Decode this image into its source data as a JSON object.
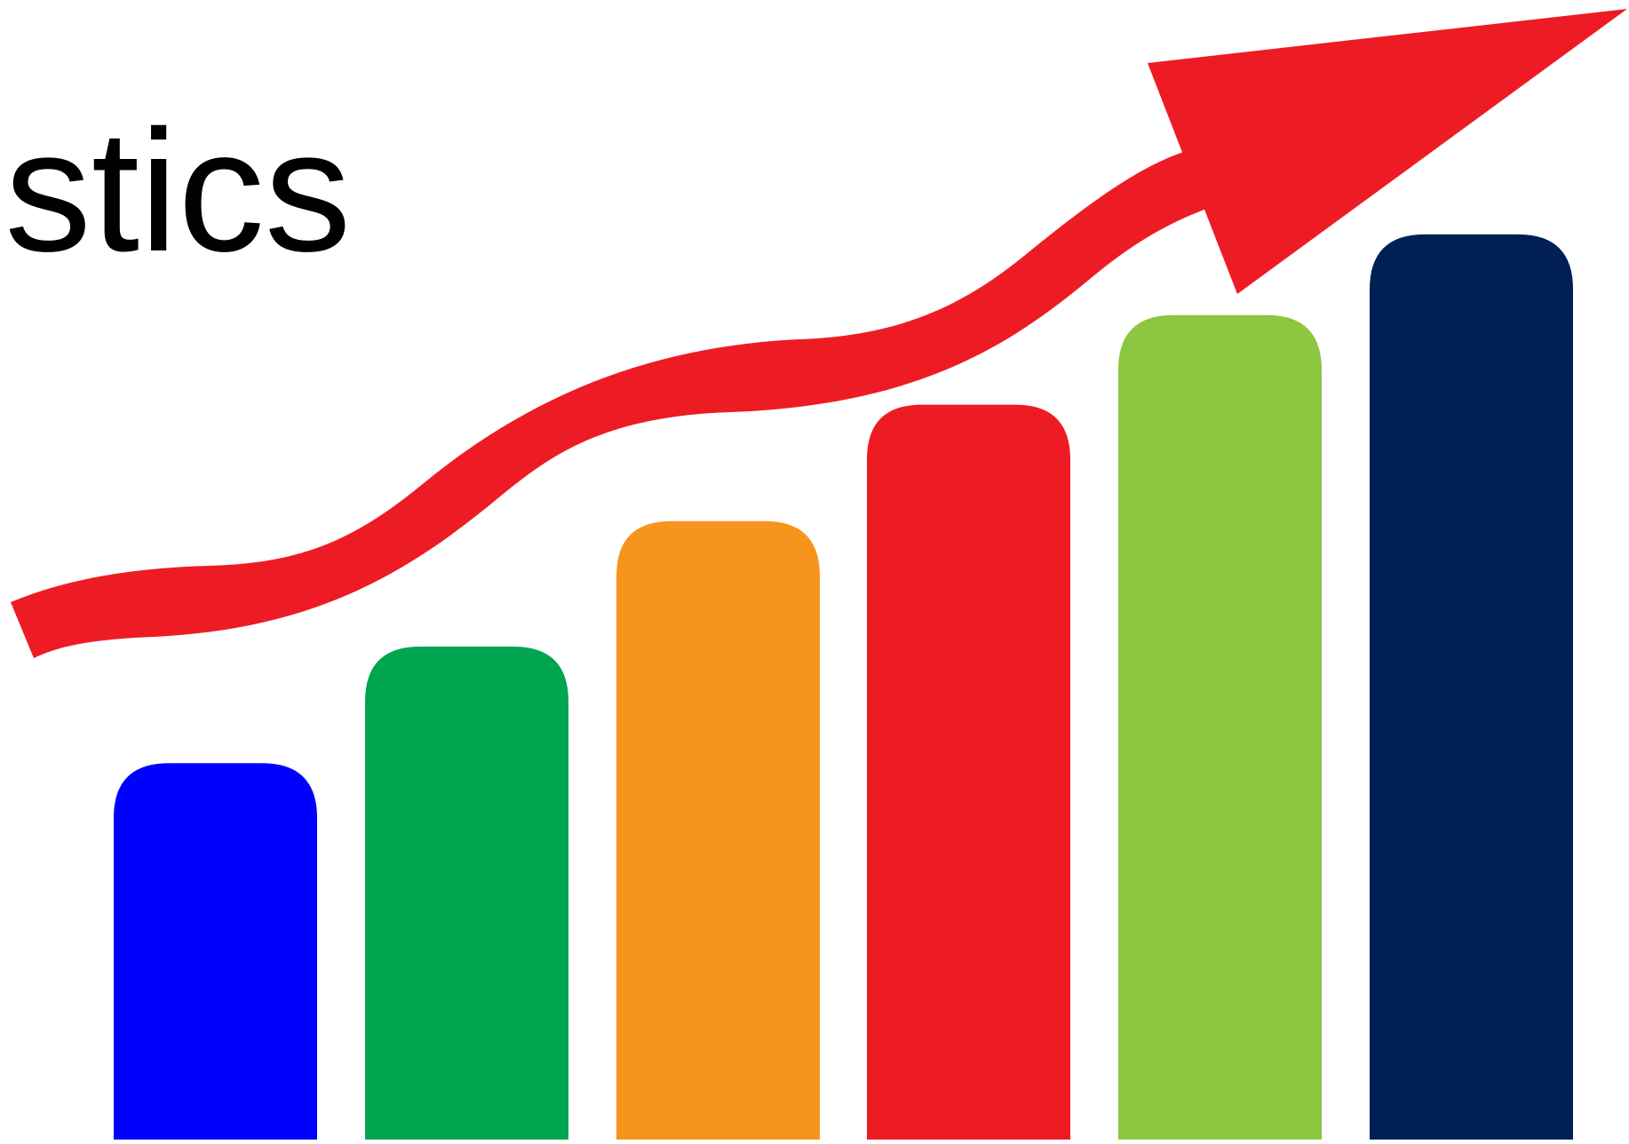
{
  "title": {
    "visible_text": "istics"
  },
  "chart_data": {
    "type": "bar",
    "values": [
      0.42,
      0.55,
      0.69,
      0.82,
      0.92,
      1.01
    ],
    "colors": [
      "#0000ff",
      "#00a550",
      "#f7941d",
      "#ed1c24",
      "#8dc63f",
      "#001f54"
    ],
    "arrow": {
      "color": "#ed1c24",
      "direction": "up-right"
    }
  }
}
